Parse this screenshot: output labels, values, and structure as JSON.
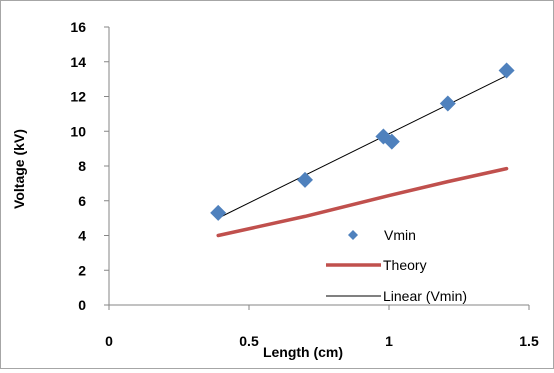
{
  "chart_data": {
    "type": "scatter",
    "xlabel": "Length (cm)",
    "ylabel": "Voltage (kV)",
    "xlim": [
      0,
      1.5
    ],
    "ylim": [
      0,
      16
    ],
    "x_ticks": [
      "0",
      "0.5",
      "1",
      "1.5"
    ],
    "y_ticks": [
      "0",
      "2",
      "4",
      "6",
      "8",
      "10",
      "12",
      "14",
      "16"
    ],
    "grid": false,
    "legend_position": "bottom-right",
    "series": [
      {
        "name": "Vmin",
        "kind": "scatter",
        "marker": "diamond",
        "color": "#4f81bd",
        "x": [
          0.39,
          0.7,
          0.98,
          1.01,
          1.21,
          1.42
        ],
        "y": [
          5.3,
          7.2,
          9.7,
          9.4,
          11.6,
          13.5
        ]
      },
      {
        "name": "Theory",
        "kind": "line",
        "color": "#c0504d",
        "x": [
          0.39,
          0.7,
          1.0,
          1.21,
          1.42
        ],
        "y": [
          4.0,
          5.1,
          6.3,
          7.1,
          7.85
        ]
      },
      {
        "name": "Linear (Vmin)",
        "kind": "trendline",
        "color": "#000000",
        "x": [
          0.39,
          1.42
        ],
        "y": [
          5.0,
          13.2
        ]
      }
    ]
  }
}
